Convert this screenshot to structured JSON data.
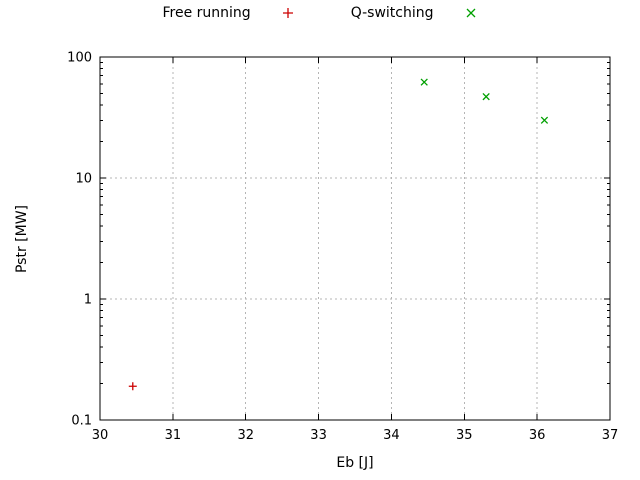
{
  "chart_data": {
    "type": "scatter",
    "title": "",
    "xlabel": "Eb [J]",
    "ylabel": "Pstr [MW]",
    "xlim": [
      30,
      37
    ],
    "ylim": [
      0.1,
      100
    ],
    "x_scale": "linear",
    "y_scale": "log",
    "grid": true,
    "legend_position": "top-center",
    "xticks": [
      30,
      31,
      32,
      33,
      34,
      35,
      36,
      37
    ],
    "xtick_labels": [
      "30",
      "31",
      "32",
      "33",
      "34",
      "35",
      "36",
      "37"
    ],
    "yticks": [
      0.1,
      1,
      10,
      100
    ],
    "ytick_labels": [
      "0.1",
      "1",
      "10",
      "100"
    ],
    "series": [
      {
        "name": "Free running",
        "marker": "plus",
        "color": "#cc0000",
        "points": [
          {
            "x": 30.45,
            "y": 0.19
          }
        ]
      },
      {
        "name": "Q-switching",
        "marker": "cross",
        "color": "#00a000",
        "points": [
          {
            "x": 34.45,
            "y": 62
          },
          {
            "x": 35.3,
            "y": 47
          },
          {
            "x": 36.1,
            "y": 30
          }
        ]
      }
    ]
  }
}
